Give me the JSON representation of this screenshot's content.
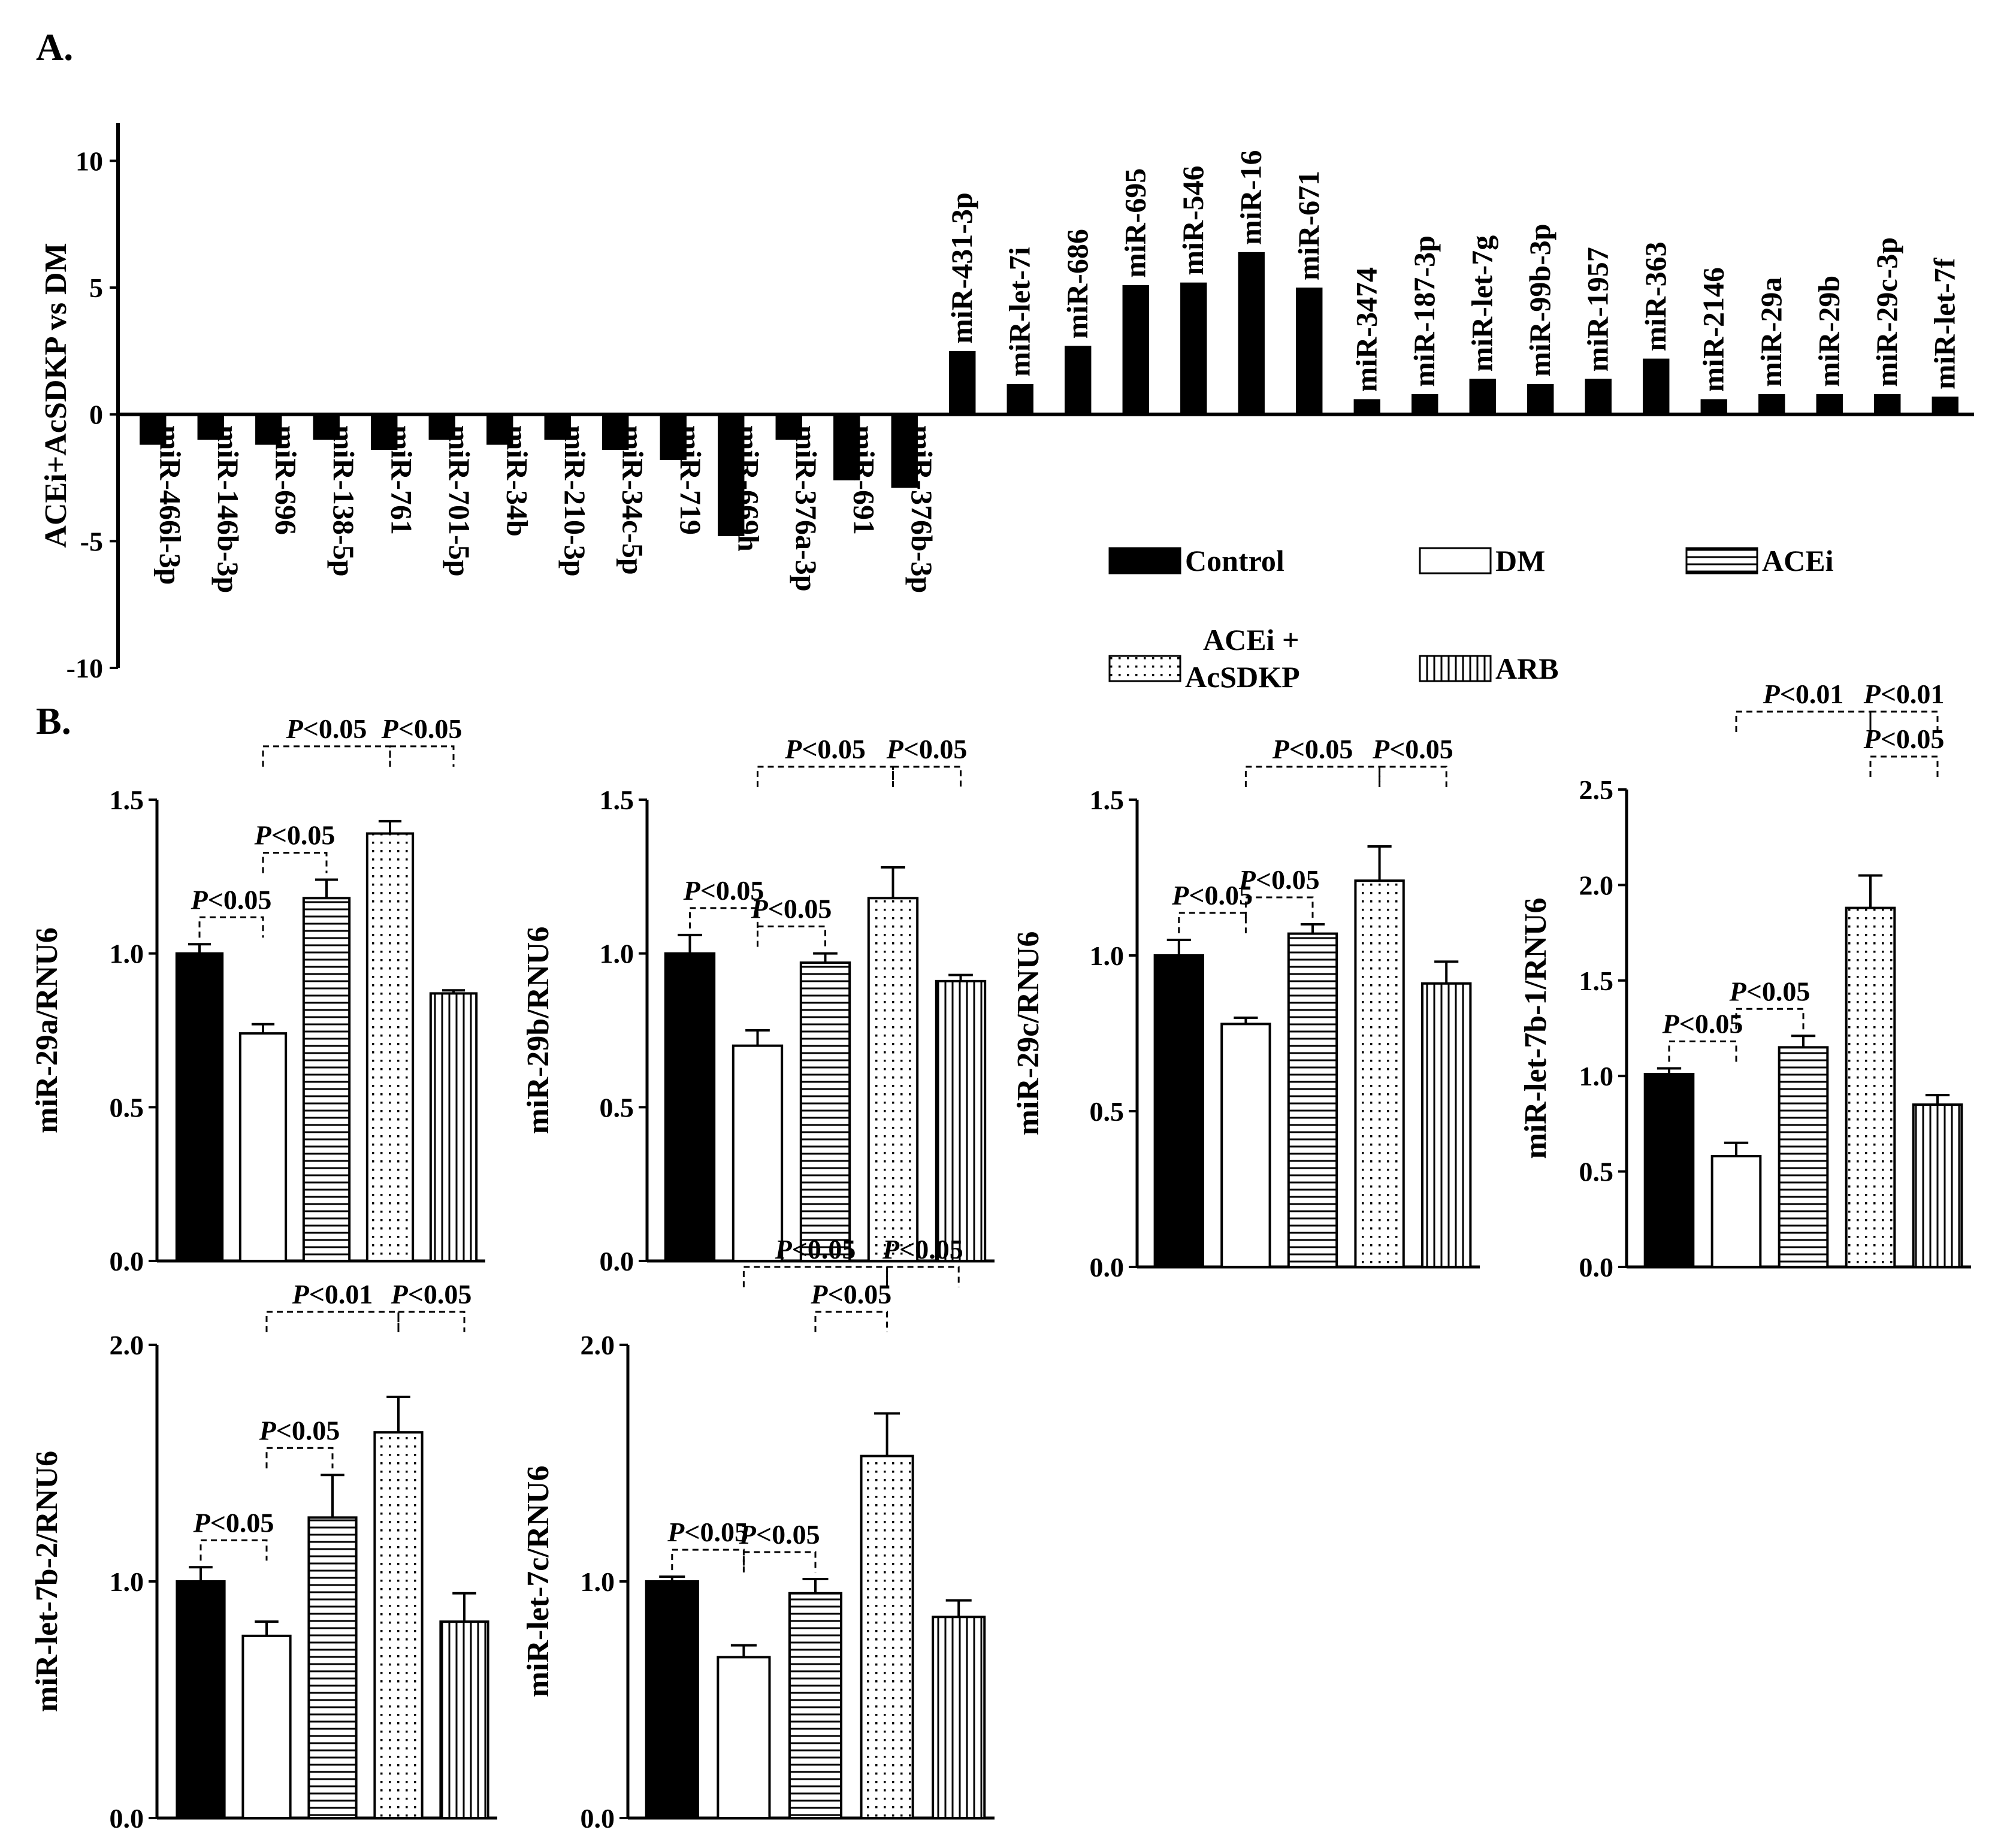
{
  "panel_a_label": "A.",
  "panel_b_label": "B.",
  "legend": [
    {
      "key": "control",
      "label": "Control",
      "pattern": "solid"
    },
    {
      "key": "dm",
      "label": "DM",
      "pattern": "empty"
    },
    {
      "key": "acei",
      "label": "ACEi",
      "pattern": "hlines"
    },
    {
      "key": "acei_acsdkp",
      "label": "ACEi +\nAcSDKP",
      "pattern": "dots"
    },
    {
      "key": "arb",
      "label": "ARB",
      "pattern": "vlines"
    }
  ],
  "colors": {
    "bar": "#000000",
    "background": "#ffffff"
  },
  "chart_data": [
    {
      "id": "A",
      "type": "bar",
      "title": "",
      "ylabel": "ACEi+AcSDKP vs DM",
      "ylim": [
        -10,
        11.5
      ],
      "yticks": [
        -10,
        -5,
        0,
        5,
        10
      ],
      "categories": [
        "miR-466l-3p",
        "miR-146b-3p",
        "miR-696",
        "miR-138-5p",
        "miR-761",
        "miR-701-5p",
        "miR-34b",
        "miR-210-3p",
        "miR-34c-5p",
        "miR-719",
        "miR-669h",
        "miR-376a-3p",
        "miR-691",
        "miR-376b-3p",
        "miR-431-3p",
        "miR-let-7i",
        "miR-686",
        "miR-695",
        "miR-546",
        "miR-16",
        "miR-671",
        "miR-3474",
        "miR-187-3p",
        "miR-let-7g",
        "miR-99b-3p",
        "miR-1957",
        "miR-363",
        "miR-2146",
        "miR-29a",
        "miR-29b",
        "miR-29c-3p",
        "miR-let-7f"
      ],
      "values": [
        -1.2,
        -1.0,
        -1.2,
        -1.0,
        -1.4,
        -1.0,
        -1.2,
        -1.0,
        -1.4,
        -1.8,
        -4.8,
        -1.0,
        -2.6,
        -2.9,
        2.5,
        1.2,
        2.7,
        5.1,
        5.2,
        6.4,
        5.0,
        0.6,
        0.8,
        1.4,
        1.2,
        1.4,
        2.2,
        0.6,
        0.8,
        0.8,
        0.8,
        0.7
      ]
    },
    {
      "id": "B1",
      "type": "bar",
      "ylabel": "miR-29a/RNU6",
      "ylim": [
        0,
        1.5
      ],
      "yticks": [
        "0.0",
        "0.5",
        "1.0",
        "1.5"
      ],
      "categories": [
        "Control",
        "DM",
        "ACEi",
        "ACEi + AcSDKP",
        "ARB"
      ],
      "values": [
        1.0,
        0.74,
        1.18,
        1.39,
        0.87
      ],
      "errors": [
        0.03,
        0.03,
        0.06,
        0.04,
        0.01
      ],
      "comparisons": [
        {
          "from": 0,
          "to": 1,
          "text": "<0.05",
          "level": 0
        },
        {
          "from": 1,
          "to": 2,
          "text": "<0.05",
          "level": 0
        },
        {
          "from": 1,
          "to": 3,
          "text": "<0.05",
          "level": 1
        },
        {
          "from": 3,
          "to": 4,
          "text": "<0.05",
          "level": 1
        }
      ]
    },
    {
      "id": "B2",
      "type": "bar",
      "ylabel": "miR-29b/RNU6",
      "ylim": [
        0,
        1.5
      ],
      "yticks": [
        "0.0",
        "0.5",
        "1.0",
        "1.5"
      ],
      "categories": [
        "Control",
        "DM",
        "ACEi",
        "ACEi + AcSDKP",
        "ARB"
      ],
      "values": [
        1.0,
        0.7,
        0.97,
        1.18,
        0.91
      ],
      "errors": [
        0.06,
        0.05,
        0.03,
        0.1,
        0.02
      ],
      "comparisons": [
        {
          "from": 0,
          "to": 1,
          "text": "<0.05",
          "level": 0
        },
        {
          "from": 1,
          "to": 2,
          "text": "<0.05",
          "level": 0
        },
        {
          "from": 1,
          "to": 3,
          "text": "<0.05",
          "level": 1
        },
        {
          "from": 3,
          "to": 4,
          "text": "<0.05",
          "level": 1
        }
      ]
    },
    {
      "id": "B3",
      "type": "bar",
      "ylabel": "miR-29c/RNU6",
      "ylim": [
        0,
        1.5
      ],
      "yticks": [
        "0.0",
        "0.5",
        "1.0",
        "1.5"
      ],
      "categories": [
        "Control",
        "DM",
        "ACEi",
        "ACEi + AcSDKP",
        "ARB"
      ],
      "values": [
        1.0,
        0.78,
        1.07,
        1.24,
        0.91
      ],
      "errors": [
        0.05,
        0.02,
        0.03,
        0.11,
        0.07
      ],
      "comparisons": [
        {
          "from": 0,
          "to": 1,
          "text": "<0.05",
          "level": 0
        },
        {
          "from": 1,
          "to": 2,
          "text": "<0.05",
          "level": 0
        },
        {
          "from": 1,
          "to": 3,
          "text": "<0.05",
          "level": 1
        },
        {
          "from": 3,
          "to": 4,
          "text": "<0.05",
          "level": 1
        }
      ]
    },
    {
      "id": "B4",
      "type": "bar",
      "ylabel": "miR-let-7b-1/RNU6",
      "ylim": [
        0,
        2.5
      ],
      "yticks": [
        "0.0",
        "0.5",
        "1.0",
        "1.5",
        "2.0",
        "2.5"
      ],
      "categories": [
        "Control",
        "DM",
        "ACEi",
        "ACEi + AcSDKP",
        "ARB"
      ],
      "values": [
        1.01,
        0.58,
        1.15,
        1.88,
        0.85
      ],
      "errors": [
        0.03,
        0.07,
        0.06,
        0.17,
        0.05
      ],
      "comparisons": [
        {
          "from": 0,
          "to": 1,
          "text": "<0.05",
          "level": 0
        },
        {
          "from": 1,
          "to": 2,
          "text": "<0.05",
          "level": 0
        },
        {
          "from": 3,
          "to": 4,
          "text": "<0.05",
          "level": 1
        },
        {
          "from": 1,
          "to": 3,
          "text": "<0.01",
          "level": 2
        },
        {
          "from": 3,
          "to": 4,
          "text": "<0.01",
          "level": 2
        }
      ]
    },
    {
      "id": "B5",
      "type": "bar",
      "ylabel": "miR-let-7b-2/RNU6",
      "ylim": [
        0,
        2.0
      ],
      "yticks": [
        "0.0",
        "1.0",
        "2.0"
      ],
      "categories": [
        "Control",
        "DM",
        "ACEi",
        "ACEi + AcSDKP",
        "ARB"
      ],
      "values": [
        1.0,
        0.77,
        1.27,
        1.63,
        0.83
      ],
      "errors": [
        0.06,
        0.06,
        0.18,
        0.15,
        0.12
      ],
      "comparisons": [
        {
          "from": 0,
          "to": 1,
          "text": "<0.05",
          "level": 0
        },
        {
          "from": 1,
          "to": 2,
          "text": "<0.05",
          "level": 0
        },
        {
          "from": 1,
          "to": 3,
          "text": "<0.01",
          "level": 1
        },
        {
          "from": 3,
          "to": 4,
          "text": "<0.05",
          "level": 1
        }
      ]
    },
    {
      "id": "B6",
      "type": "bar",
      "ylabel": "miR-let-7c/RNU6",
      "ylim": [
        0,
        2.0
      ],
      "yticks": [
        "0.0",
        "1.0",
        "2.0"
      ],
      "categories": [
        "Control",
        "DM",
        "ACEi",
        "ACEi + AcSDKP",
        "ARB"
      ],
      "values": [
        1.0,
        0.68,
        0.95,
        1.53,
        0.85
      ],
      "errors": [
        0.02,
        0.05,
        0.06,
        0.18,
        0.07
      ],
      "comparisons": [
        {
          "from": 0,
          "to": 1,
          "text": "<0.05",
          "level": 0
        },
        {
          "from": 1,
          "to": 2,
          "text": "<0.05",
          "level": 0
        },
        {
          "from": 2,
          "to": 3,
          "text": "<0.05",
          "level": 1
        },
        {
          "from": 1,
          "to": 3,
          "text": "<0.05",
          "level": 2
        },
        {
          "from": 3,
          "to": 4,
          "text": "<0.05",
          "level": 2
        }
      ]
    }
  ]
}
